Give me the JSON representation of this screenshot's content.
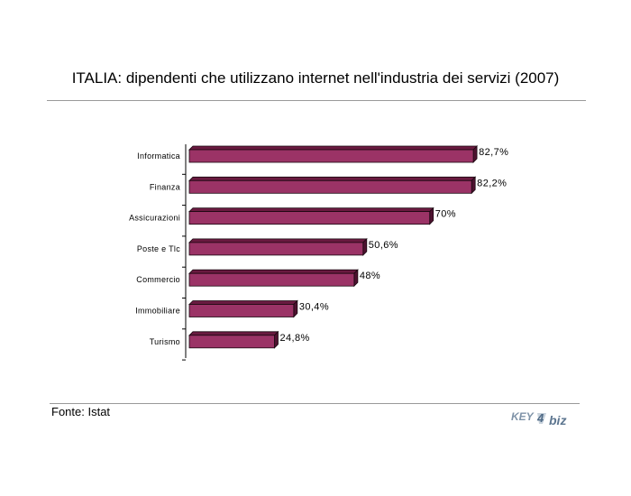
{
  "chart_data": {
    "type": "bar",
    "orientation": "horizontal",
    "title": "ITALIA: dipendenti che utilizzano internet nell'industria dei servizi (2007)",
    "categories": [
      "Informatica",
      "Finanza",
      "Assicurazioni",
      "Poste e Tlc",
      "Commercio",
      "Immobiliare",
      "Turismo"
    ],
    "values": [
      82.7,
      82.2,
      70,
      50.6,
      48,
      30.4,
      24.8
    ],
    "value_labels": [
      "82,7%",
      "82,2%",
      "70%",
      "50,6%",
      "48%",
      "30,4%",
      "24,8%"
    ],
    "xlim": [
      0,
      100
    ],
    "grid": false,
    "legend": "none",
    "colors": {
      "bar_front": "#9b3366",
      "bar_top": "#6a1a40",
      "bar_side": "#4e1230",
      "outline": "#1a0810"
    }
  },
  "source": "Fonte: Istat",
  "brand": {
    "part1": "KEY",
    "part2": "4",
    "part3": "biz"
  }
}
